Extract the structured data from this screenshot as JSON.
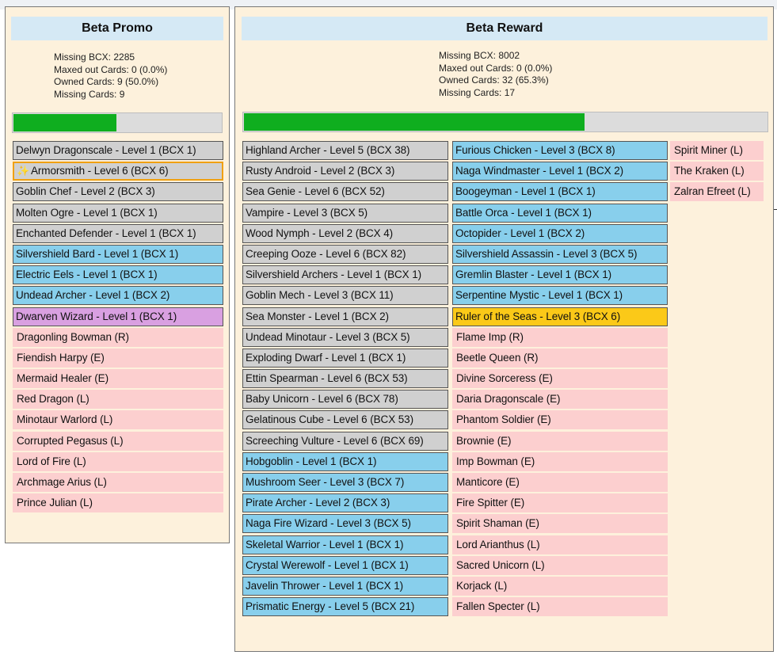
{
  "colors": {
    "panel_bg": "#fdf1dc",
    "title_bg": "#d5e9f5",
    "progress_fill": "#0fae1f",
    "owned_grey": "#d0d0d0",
    "owned_blue": "#88cfec",
    "owned_purple": "#d9a0e1",
    "owned_yellow": "#fbc918",
    "missing_pink": "#fccfcf",
    "selected_outline": "#f0a010"
  },
  "promo": {
    "title": "Beta Promo",
    "stats": [
      "Missing BCX: 2285",
      "Maxed out Cards: 0 (0.0%)",
      "Owned Cards: 9 (50.0%)",
      "Missing Cards: 9"
    ],
    "progress": 0.5,
    "columns": [
      [
        {
          "label": "Delwyn Dragonscale - Level 1 (BCX 1)",
          "color": "grey",
          "owned": true
        },
        {
          "label": "Armorsmith - Level 6 (BCX 6)",
          "color": "grey",
          "owned": true,
          "selected": true,
          "icon": "sparkle-icon"
        },
        {
          "label": "Goblin Chef - Level 2 (BCX 3)",
          "color": "grey",
          "owned": true
        },
        {
          "label": "Molten Ogre - Level 1 (BCX 1)",
          "color": "grey",
          "owned": true
        },
        {
          "label": "Enchanted Defender - Level 1 (BCX 1)",
          "color": "grey",
          "owned": true
        },
        {
          "label": "Silvershield Bard - Level 1 (BCX 1)",
          "color": "blue",
          "owned": true
        },
        {
          "label": "Electric Eels - Level 1 (BCX 1)",
          "color": "blue",
          "owned": true
        },
        {
          "label": "Undead Archer - Level 1 (BCX 2)",
          "color": "blue",
          "owned": true
        },
        {
          "label": "Dwarven Wizard - Level 1 (BCX 1)",
          "color": "purple",
          "owned": true
        },
        {
          "label": "Dragonling Bowman (R)",
          "color": "pink",
          "owned": false
        },
        {
          "label": "Fiendish Harpy (E)",
          "color": "pink",
          "owned": false
        },
        {
          "label": "Mermaid Healer (E)",
          "color": "pink",
          "owned": false
        },
        {
          "label": "Red Dragon (L)",
          "color": "pink",
          "owned": false
        },
        {
          "label": "Minotaur Warlord (L)",
          "color": "pink",
          "owned": false
        },
        {
          "label": "Corrupted Pegasus (L)",
          "color": "pink",
          "owned": false
        },
        {
          "label": "Lord of Fire (L)",
          "color": "pink",
          "owned": false
        },
        {
          "label": "Archmage Arius (L)",
          "color": "pink",
          "owned": false
        },
        {
          "label": "Prince Julian (L)",
          "color": "pink",
          "owned": false
        }
      ]
    ]
  },
  "reward": {
    "title": "Beta Reward",
    "stats": [
      "Missing BCX: 8002",
      "Maxed out Cards: 0 (0.0%)",
      "Owned Cards: 32 (65.3%)",
      "Missing Cards: 17"
    ],
    "progress": 0.653,
    "columns": [
      [
        {
          "label": "Highland Archer - Level 5 (BCX 38)",
          "color": "grey",
          "owned": true
        },
        {
          "label": "Rusty Android - Level 2 (BCX 3)",
          "color": "grey",
          "owned": true
        },
        {
          "label": "Sea Genie - Level 6 (BCX 52)",
          "color": "grey",
          "owned": true
        },
        {
          "label": "Vampire - Level 3 (BCX 5)",
          "color": "grey",
          "owned": true
        },
        {
          "label": "Wood Nymph - Level 2 (BCX 4)",
          "color": "grey",
          "owned": true
        },
        {
          "label": "Creeping Ooze - Level 6 (BCX 82)",
          "color": "grey",
          "owned": true
        },
        {
          "label": "Silvershield Archers - Level 1 (BCX 1)",
          "color": "grey",
          "owned": true
        },
        {
          "label": "Goblin Mech - Level 3 (BCX 11)",
          "color": "grey",
          "owned": true
        },
        {
          "label": "Sea Monster - Level 1 (BCX 2)",
          "color": "grey",
          "owned": true
        },
        {
          "label": "Undead Minotaur - Level 3 (BCX 5)",
          "color": "grey",
          "owned": true
        },
        {
          "label": "Exploding Dwarf - Level 1 (BCX 1)",
          "color": "grey",
          "owned": true
        },
        {
          "label": "Ettin Spearman - Level 6 (BCX 53)",
          "color": "grey",
          "owned": true
        },
        {
          "label": "Baby Unicorn - Level 6 (BCX 78)",
          "color": "grey",
          "owned": true
        },
        {
          "label": "Gelatinous Cube - Level 6 (BCX 53)",
          "color": "grey",
          "owned": true
        },
        {
          "label": "Screeching Vulture - Level 6 (BCX 69)",
          "color": "grey",
          "owned": true
        },
        {
          "label": "Hobgoblin - Level 1 (BCX 1)",
          "color": "blue",
          "owned": true
        },
        {
          "label": "Mushroom Seer - Level 3 (BCX 7)",
          "color": "blue",
          "owned": true
        },
        {
          "label": "Pirate Archer - Level 2 (BCX 3)",
          "color": "blue",
          "owned": true
        },
        {
          "label": "Naga Fire Wizard - Level 3 (BCX 5)",
          "color": "blue",
          "owned": true
        },
        {
          "label": "Skeletal Warrior - Level 1 (BCX 1)",
          "color": "blue",
          "owned": true
        },
        {
          "label": "Crystal Werewolf - Level 1 (BCX 1)",
          "color": "blue",
          "owned": true
        },
        {
          "label": "Javelin Thrower - Level 1 (BCX 1)",
          "color": "blue",
          "owned": true
        },
        {
          "label": "Prismatic Energy - Level 5 (BCX 21)",
          "color": "blue",
          "owned": true
        }
      ],
      [
        {
          "label": "Furious Chicken - Level 3 (BCX 8)",
          "color": "blue",
          "owned": true
        },
        {
          "label": "Naga Windmaster - Level 1 (BCX 2)",
          "color": "blue",
          "owned": true
        },
        {
          "label": "Boogeyman - Level 1 (BCX 1)",
          "color": "blue",
          "owned": true
        },
        {
          "label": "Battle Orca - Level 1 (BCX 1)",
          "color": "blue",
          "owned": true
        },
        {
          "label": "Octopider - Level 1 (BCX 2)",
          "color": "blue",
          "owned": true
        },
        {
          "label": "Silvershield Assassin - Level 3 (BCX 5)",
          "color": "blue",
          "owned": true
        },
        {
          "label": "Gremlin Blaster - Level 1 (BCX 1)",
          "color": "blue",
          "owned": true
        },
        {
          "label": "Serpentine Mystic - Level 1 (BCX 1)",
          "color": "blue",
          "owned": true
        },
        {
          "label": "Ruler of the Seas - Level 3 (BCX 6)",
          "color": "yellow",
          "owned": true
        },
        {
          "label": "Flame Imp (R)",
          "color": "pink",
          "owned": false
        },
        {
          "label": "Beetle Queen (R)",
          "color": "pink",
          "owned": false
        },
        {
          "label": "Divine Sorceress (E)",
          "color": "pink",
          "owned": false
        },
        {
          "label": "Daria Dragonscale (E)",
          "color": "pink",
          "owned": false
        },
        {
          "label": "Phantom Soldier (E)",
          "color": "pink",
          "owned": false
        },
        {
          "label": "Brownie (E)",
          "color": "pink",
          "owned": false
        },
        {
          "label": "Imp Bowman (E)",
          "color": "pink",
          "owned": false
        },
        {
          "label": "Manticore (E)",
          "color": "pink",
          "owned": false
        },
        {
          "label": "Fire Spitter (E)",
          "color": "pink",
          "owned": false
        },
        {
          "label": "Spirit Shaman (E)",
          "color": "pink",
          "owned": false
        },
        {
          "label": "Lord Arianthus (L)",
          "color": "pink",
          "owned": false
        },
        {
          "label": "Sacred Unicorn (L)",
          "color": "pink",
          "owned": false
        },
        {
          "label": "Korjack (L)",
          "color": "pink",
          "owned": false
        },
        {
          "label": "Fallen Specter (L)",
          "color": "pink",
          "owned": false
        }
      ],
      [
        {
          "label": "Spirit Miner (L)",
          "color": "pink",
          "owned": false
        },
        {
          "label": "The Kraken (L)",
          "color": "pink",
          "owned": false
        },
        {
          "label": "Zalran Efreet (L)",
          "color": "pink",
          "owned": false
        }
      ]
    ]
  }
}
